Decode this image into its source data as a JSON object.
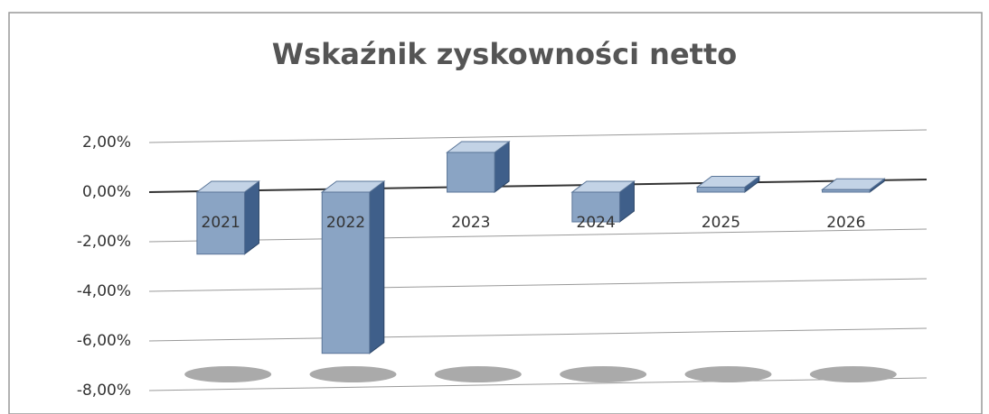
{
  "chart_data": {
    "type": "bar3d",
    "title": "Wskaźnik zyskowności netto",
    "categories": [
      "2021",
      "2022",
      "2023",
      "2024",
      "2025",
      "2026"
    ],
    "values": [
      -2.5,
      -6.5,
      1.6,
      -1.2,
      0.2,
      0.1
    ],
    "color": "#8aa4c4",
    "ylim": [
      -8,
      2
    ],
    "yticks": [
      {
        "value": -8,
        "label": "-8,00%"
      },
      {
        "value": -6,
        "label": "-6,00%"
      },
      {
        "value": -4,
        "label": "-4,00%"
      },
      {
        "value": -2,
        "label": "-2,00%"
      },
      {
        "value": 0,
        "label": "0,00%"
      },
      {
        "value": 2,
        "label": "2,00%"
      }
    ],
    "grid": true
  }
}
